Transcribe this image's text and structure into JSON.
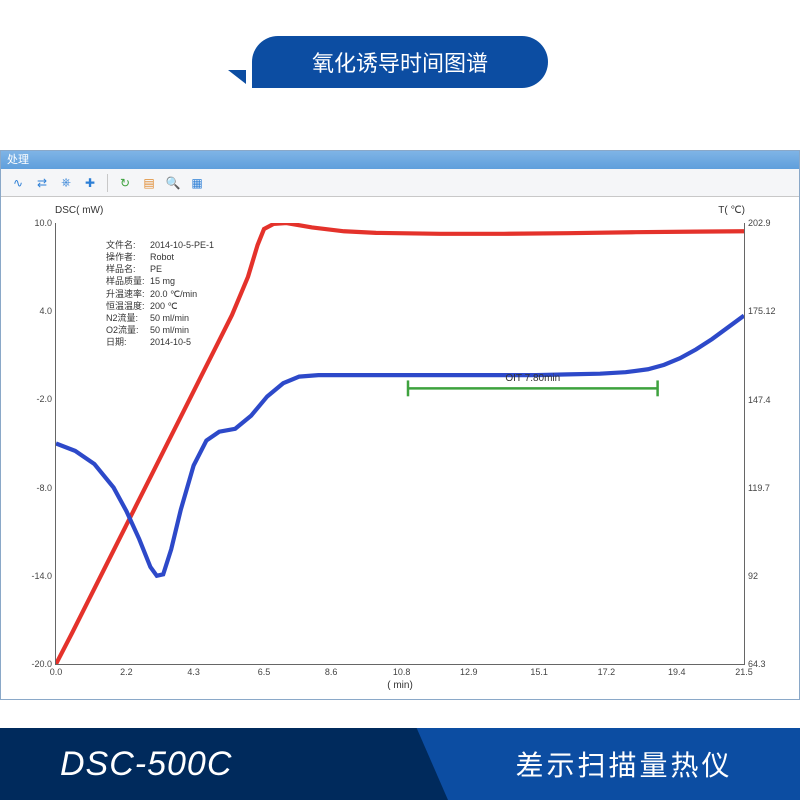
{
  "header": {
    "pill_label": "氧化诱导时间图谱"
  },
  "window": {
    "title": "处理"
  },
  "toolbar": {
    "icons": [
      "curve",
      "link",
      "anchor",
      "plus",
      "sep",
      "undo",
      "note",
      "search",
      "grid"
    ]
  },
  "chart": {
    "type": "line",
    "background_color": "#ffffff",
    "axis_color": "#666666",
    "text_color": "#333333",
    "label_fontsize": 10,
    "tick_fontsize": 9,
    "left_axis": {
      "label": "DSC( mW)",
      "min": -20.0,
      "max": 10.0,
      "ticks": [
        -20.0,
        -14.0,
        -8.0,
        -2.0,
        4.0,
        10.0
      ]
    },
    "right_axis": {
      "label": "T( ℃)",
      "min": 64.3,
      "max": 202.9,
      "ticks": [
        64.3,
        92.0,
        119.7,
        147.4,
        175.12,
        202.9
      ]
    },
    "x_axis": {
      "label": "( min)",
      "min": 0.0,
      "max": 21.5,
      "ticks": [
        0.0,
        2.2,
        4.3,
        6.5,
        8.6,
        10.8,
        12.9,
        15.1,
        17.2,
        19.4,
        21.5
      ]
    },
    "series": [
      {
        "name": "temperature",
        "axis": "right",
        "color": "#e4322b",
        "line_width": 1.4,
        "points": [
          [
            0.0,
            64.3
          ],
          [
            0.5,
            74
          ],
          [
            1.0,
            84
          ],
          [
            1.5,
            94
          ],
          [
            2.0,
            104
          ],
          [
            2.5,
            114
          ],
          [
            3.0,
            124
          ],
          [
            3.5,
            134
          ],
          [
            4.0,
            144
          ],
          [
            4.5,
            154
          ],
          [
            5.0,
            164
          ],
          [
            5.5,
            174
          ],
          [
            6.0,
            186
          ],
          [
            6.3,
            196
          ],
          [
            6.5,
            201
          ],
          [
            6.8,
            202.6
          ],
          [
            7.2,
            202.9
          ],
          [
            8.0,
            201.5
          ],
          [
            9.0,
            200.3
          ],
          [
            10.0,
            199.8
          ],
          [
            12.0,
            199.5
          ],
          [
            14.0,
            199.5
          ],
          [
            16.0,
            199.7
          ],
          [
            18.0,
            200.0
          ],
          [
            20.0,
            200.2
          ],
          [
            21.5,
            200.3
          ]
        ]
      },
      {
        "name": "dsc",
        "axis": "left",
        "color": "#2d49c9",
        "line_width": 1.4,
        "points": [
          [
            0.0,
            -5.0
          ],
          [
            0.6,
            -5.5
          ],
          [
            1.2,
            -6.4
          ],
          [
            1.8,
            -8.0
          ],
          [
            2.2,
            -9.6
          ],
          [
            2.6,
            -11.5
          ],
          [
            2.95,
            -13.4
          ],
          [
            3.15,
            -14.0
          ],
          [
            3.35,
            -13.9
          ],
          [
            3.6,
            -12.2
          ],
          [
            3.9,
            -9.5
          ],
          [
            4.3,
            -6.5
          ],
          [
            4.7,
            -4.8
          ],
          [
            5.1,
            -4.2
          ],
          [
            5.6,
            -4.0
          ],
          [
            6.1,
            -3.1
          ],
          [
            6.6,
            -1.8
          ],
          [
            7.1,
            -0.9
          ],
          [
            7.6,
            -0.45
          ],
          [
            8.2,
            -0.35
          ],
          [
            9.0,
            -0.35
          ],
          [
            10.0,
            -0.35
          ],
          [
            11.0,
            -0.35
          ],
          [
            12.0,
            -0.35
          ],
          [
            13.0,
            -0.35
          ],
          [
            14.0,
            -0.35
          ],
          [
            15.0,
            -0.35
          ],
          [
            16.0,
            -0.3
          ],
          [
            17.0,
            -0.25
          ],
          [
            17.8,
            -0.15
          ],
          [
            18.5,
            0.05
          ],
          [
            19.0,
            0.35
          ],
          [
            19.5,
            0.8
          ],
          [
            20.0,
            1.4
          ],
          [
            20.5,
            2.1
          ],
          [
            21.0,
            2.9
          ],
          [
            21.5,
            3.7
          ]
        ]
      }
    ],
    "oit": {
      "bracket_color": "#3ea23e",
      "label": "OIT 7.80min",
      "x_start": 11.0,
      "x_end": 18.8,
      "y_dsc": -0.35
    },
    "meta": [
      {
        "k": "文件名:",
        "v": "2014-10-5-PE-1"
      },
      {
        "k": "操作者:",
        "v": "Robot"
      },
      {
        "k": "样品名:",
        "v": "PE"
      },
      {
        "k": "样品质量:",
        "v": "15 mg"
      },
      {
        "k": "升温速率:",
        "v": "20.0 ℃/min"
      },
      {
        "k": "恒温温度:",
        "v": "200 ℃"
      },
      {
        "k": "N2流量:",
        "v": "50 ml/min"
      },
      {
        "k": "O2流量:",
        "v": "50 ml/min"
      },
      {
        "k": "日期:",
        "v": "2014-10-5"
      }
    ]
  },
  "footer": {
    "model": "DSC-500C",
    "device_name": "差示扫描量热仪"
  }
}
